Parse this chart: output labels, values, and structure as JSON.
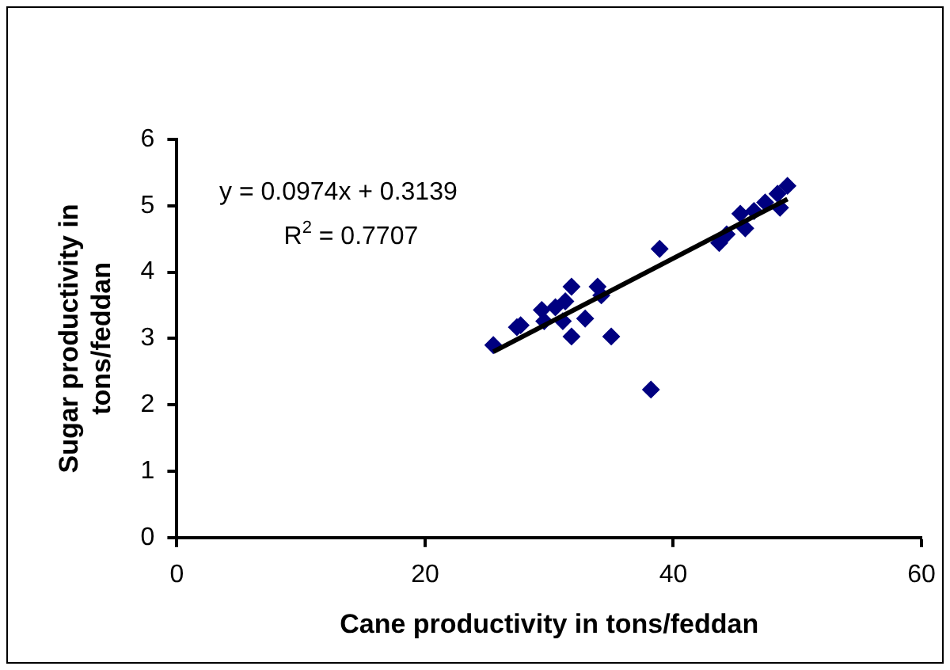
{
  "chart_data": {
    "type": "scatter",
    "xlabel": "Cane productivity in tons/feddan",
    "ylabel": "Sugar productivity in tons/feddan",
    "xlim": [
      0,
      60
    ],
    "xticks": [
      0,
      20,
      40,
      60
    ],
    "ylim": [
      0,
      6
    ],
    "yticks": [
      0,
      1,
      2,
      3,
      4,
      5,
      6
    ],
    "grid": false,
    "legend": false,
    "marker": "diamond",
    "annotations": [
      "y = 0.0974x + 0.3139",
      "R$^{2}$ = 0.7707"
    ],
    "series": [
      {
        "color": "#000080",
        "x": [
          25.5,
          27.4,
          27.7,
          29.4,
          29.6,
          30.5,
          31.1,
          31.8,
          31.8,
          31.3,
          32.9,
          33.9,
          34.2,
          35.0,
          38.9,
          38.2,
          43.7,
          44.3,
          45.4,
          45.8,
          46.5,
          47.4,
          48.6,
          48.4,
          49.2
        ],
        "values": [
          2.9,
          3.17,
          3.2,
          3.43,
          3.26,
          3.47,
          3.26,
          3.78,
          3.03,
          3.56,
          3.3,
          3.78,
          3.65,
          3.03,
          4.35,
          2.23,
          4.44,
          4.57,
          4.88,
          4.66,
          4.92,
          5.05,
          4.97,
          5.18,
          5.3
        ]
      },
      {
        "type": "line",
        "marker": "none",
        "color": "#000000",
        "x": [
          25.5,
          49.2
        ],
        "values": [
          2.8,
          5.1
        ]
      }
    ]
  }
}
